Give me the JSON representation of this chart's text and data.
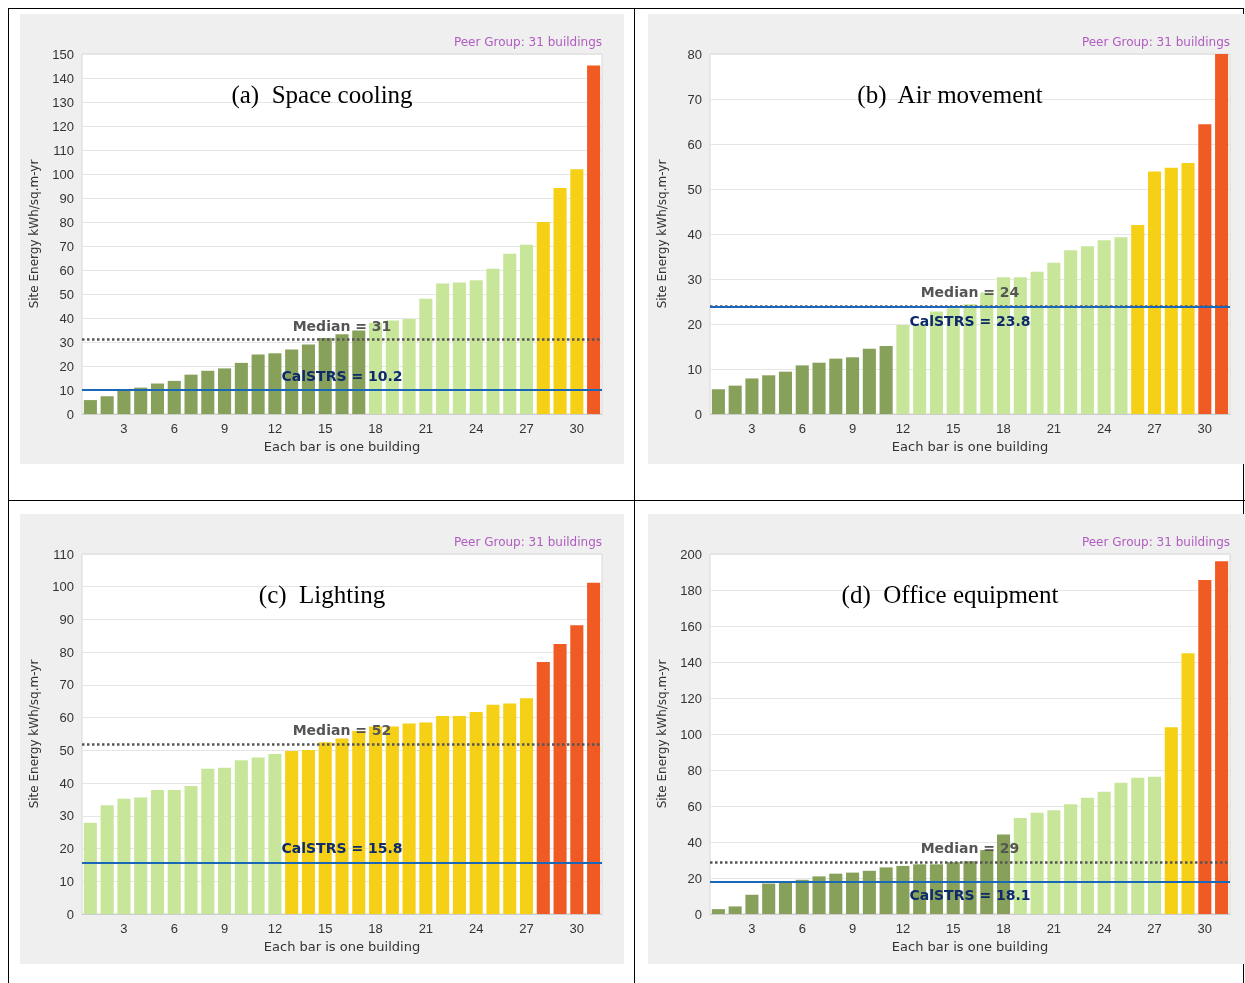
{
  "chart_data": [
    {
      "type": "bar",
      "title": "(a)  Space cooling",
      "subtitle": "Peer Group: 31 buildings",
      "xlabel": "Each bar is one building",
      "ylabel": "Site Energy kWh/sq.m-yr",
      "categories": [
        null,
        null,
        "3",
        null,
        null,
        "6",
        null,
        null,
        "9",
        null,
        null,
        "12",
        null,
        null,
        "15",
        null,
        null,
        "18",
        null,
        null,
        "21",
        null,
        null,
        "24",
        null,
        null,
        "27",
        null,
        null,
        "30",
        null
      ],
      "values": [
        5.8,
        7.4,
        10,
        11,
        12.7,
        13.8,
        16.4,
        18,
        19,
        21.3,
        24.8,
        25.3,
        26.9,
        29,
        31.7,
        33.2,
        34.8,
        38,
        39,
        39.6,
        48,
        54.4,
        54.8,
        55.7,
        60.5,
        66.8,
        70.5,
        80,
        94.2,
        102,
        145.2
      ],
      "colors": [
        "#87a05a",
        "#87a05a",
        "#87a05a",
        "#87a05a",
        "#87a05a",
        "#87a05a",
        "#87a05a",
        "#87a05a",
        "#87a05a",
        "#87a05a",
        "#87a05a",
        "#87a05a",
        "#87a05a",
        "#87a05a",
        "#87a05a",
        "#87a05a",
        "#87a05a",
        "#c8e69a",
        "#c8e69a",
        "#c8e69a",
        "#c8e69a",
        "#c8e69a",
        "#c8e69a",
        "#c8e69a",
        "#c8e69a",
        "#c8e69a",
        "#c8e69a",
        "#f5d016",
        "#f5d016",
        "#f5d016",
        "#f05a23"
      ],
      "ylim": [
        0,
        150
      ],
      "yticks": [
        0,
        10,
        20,
        30,
        40,
        50,
        60,
        70,
        80,
        90,
        100,
        110,
        120,
        130,
        140,
        150
      ],
      "grid": "y",
      "ref_lines": [
        {
          "axis": "y",
          "value": 31,
          "label": "Median = 31",
          "color": "#555555",
          "line_style": "dotted"
        },
        {
          "axis": "y",
          "value": 10.2,
          "label": "CalSTRS = 10.2",
          "color": "#1a66b8",
          "line_style": "solid"
        }
      ]
    },
    {
      "type": "bar",
      "title": "(b)  Air movement",
      "subtitle": "Peer Group: 31 buildings",
      "xlabel": "Each bar is one building",
      "ylabel": "Site Energy kWh/sq.m-yr",
      "categories": [
        null,
        null,
        "3",
        null,
        null,
        "6",
        null,
        null,
        "9",
        null,
        null,
        "12",
        null,
        null,
        "15",
        null,
        null,
        "18",
        null,
        null,
        "21",
        null,
        null,
        "24",
        null,
        null,
        "27",
        null,
        null,
        "30",
        null
      ],
      "values": [
        5.5,
        6.3,
        7.9,
        8.6,
        9.4,
        10.8,
        11.4,
        12.3,
        12.6,
        14.5,
        15.1,
        19.8,
        19.8,
        22.8,
        23.5,
        24.4,
        27,
        30.4,
        30.4,
        31.6,
        33.6,
        36.4,
        37.3,
        38.6,
        39.3,
        42,
        53.9,
        54.7,
        55.8,
        64.4,
        80
      ],
      "colors": [
        "#87a05a",
        "#87a05a",
        "#87a05a",
        "#87a05a",
        "#87a05a",
        "#87a05a",
        "#87a05a",
        "#87a05a",
        "#87a05a",
        "#87a05a",
        "#87a05a",
        "#c8e69a",
        "#c8e69a",
        "#c8e69a",
        "#c8e69a",
        "#c8e69a",
        "#c8e69a",
        "#c8e69a",
        "#c8e69a",
        "#c8e69a",
        "#c8e69a",
        "#c8e69a",
        "#c8e69a",
        "#c8e69a",
        "#c8e69a",
        "#f5d016",
        "#f5d016",
        "#f5d016",
        "#f5d016",
        "#f05a23",
        "#f05a23"
      ],
      "ylim": [
        0,
        80
      ],
      "yticks": [
        0,
        10,
        20,
        30,
        40,
        50,
        60,
        70,
        80
      ],
      "grid": "y",
      "ref_lines": [
        {
          "axis": "y",
          "value": 24,
          "label": "Median = 24",
          "color": "#555555",
          "line_style": "dotted"
        },
        {
          "axis": "y",
          "value": 23.8,
          "label": "CalSTRS = 23.8",
          "color": "#1a66b8",
          "line_style": "solid"
        }
      ]
    },
    {
      "type": "bar",
      "title": "(c)  Lighting",
      "subtitle": "Peer Group: 31 buildings",
      "xlabel": "Each bar is one building",
      "ylabel": "Site Energy kWh/sq.m-yr",
      "categories": [
        null,
        null,
        "3",
        null,
        null,
        "6",
        null,
        null,
        "9",
        null,
        null,
        "12",
        null,
        null,
        "15",
        null,
        null,
        "18",
        null,
        null,
        "21",
        null,
        null,
        "24",
        null,
        null,
        "27",
        null,
        null,
        "30",
        null
      ],
      "values": [
        27.9,
        33.2,
        35.2,
        35.6,
        37.9,
        37.9,
        39.1,
        44.4,
        44.7,
        47,
        47.8,
        48.9,
        49.8,
        50.1,
        52.5,
        53.6,
        55.9,
        57.3,
        57.3,
        58.2,
        58.5,
        60.5,
        60.5,
        61.7,
        63.9,
        64.3,
        65.9,
        77,
        82.5,
        88.2,
        101.2
      ],
      "colors": [
        "#c8e69a",
        "#c8e69a",
        "#c8e69a",
        "#c8e69a",
        "#c8e69a",
        "#c8e69a",
        "#c8e69a",
        "#c8e69a",
        "#c8e69a",
        "#c8e69a",
        "#c8e69a",
        "#c8e69a",
        "#f5d016",
        "#f5d016",
        "#f5d016",
        "#f5d016",
        "#f5d016",
        "#f5d016",
        "#f5d016",
        "#f5d016",
        "#f5d016",
        "#f5d016",
        "#f5d016",
        "#f5d016",
        "#f5d016",
        "#f5d016",
        "#f5d016",
        "#f05a23",
        "#f05a23",
        "#f05a23",
        "#f05a23"
      ],
      "ylim": [
        0,
        110
      ],
      "yticks": [
        0,
        10,
        20,
        30,
        40,
        50,
        60,
        70,
        80,
        90,
        100,
        110
      ],
      "grid": "y",
      "ref_lines": [
        {
          "axis": "y",
          "value": 52,
          "label": "Median = 52",
          "color": "#555555",
          "line_style": "dotted"
        },
        {
          "axis": "y",
          "value": 15.8,
          "label": "CalSTRS = 15.8",
          "color": "#1a66b8",
          "line_style": "solid"
        }
      ]
    },
    {
      "type": "bar",
      "title": "(d)  Office equipment",
      "subtitle": "Peer Group: 31 buildings",
      "xlabel": "Each bar is one building",
      "ylabel": "Site Energy kWh/sq.m-yr",
      "categories": [
        null,
        null,
        "3",
        null,
        null,
        "6",
        null,
        null,
        "9",
        null,
        null,
        "12",
        null,
        null,
        "15",
        null,
        null,
        "18",
        null,
        null,
        "21",
        null,
        null,
        "24",
        null,
        null,
        "27",
        null,
        null,
        "30",
        null
      ],
      "values": [
        2.7,
        4.2,
        10.7,
        16.9,
        17.6,
        19,
        20.9,
        22.4,
        23,
        24,
        25.9,
        26.7,
        27.6,
        27.6,
        28.8,
        29.3,
        35.5,
        44.1,
        53.3,
        56.2,
        57.7,
        61,
        64.6,
        67.9,
        72.9,
        75.7,
        76.3,
        103.7,
        144.8,
        185.6,
        196
      ],
      "colors": [
        "#87a05a",
        "#87a05a",
        "#87a05a",
        "#87a05a",
        "#87a05a",
        "#87a05a",
        "#87a05a",
        "#87a05a",
        "#87a05a",
        "#87a05a",
        "#87a05a",
        "#87a05a",
        "#87a05a",
        "#87a05a",
        "#87a05a",
        "#87a05a",
        "#87a05a",
        "#87a05a",
        "#c8e69a",
        "#c8e69a",
        "#c8e69a",
        "#c8e69a",
        "#c8e69a",
        "#c8e69a",
        "#c8e69a",
        "#c8e69a",
        "#c8e69a",
        "#f5d016",
        "#f5d016",
        "#f05a23",
        "#f05a23"
      ],
      "ylim": [
        0,
        200
      ],
      "yticks": [
        0,
        20,
        40,
        60,
        80,
        100,
        120,
        140,
        160,
        180,
        200
      ],
      "grid": "y",
      "ref_lines": [
        {
          "axis": "y",
          "value": 29,
          "label": "Median = 29",
          "color": "#555555",
          "line_style": "dotted"
        },
        {
          "axis": "y",
          "value": 18.1,
          "label": "CalSTRS = 18.1",
          "color": "#1a66b8",
          "line_style": "solid"
        }
      ]
    }
  ]
}
